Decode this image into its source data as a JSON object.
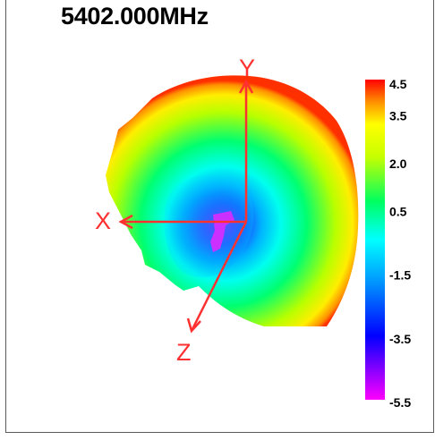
{
  "title": "5402.000MHz",
  "chart_data": {
    "type": "heatmap",
    "title": "5402.000MHz",
    "colorbar": {
      "min": -5.5,
      "max": 4.5,
      "ticks": [
        {
          "label": "4.5",
          "value": 4.5
        },
        {
          "label": "3.5",
          "value": 3.5
        },
        {
          "label": "2.0",
          "value": 2.0
        },
        {
          "label": "0.5",
          "value": 0.5
        },
        {
          "label": "-1.5",
          "value": -1.5
        },
        {
          "label": "-3.5",
          "value": -3.5
        },
        {
          "label": "-5.5",
          "value": -5.5
        }
      ],
      "colormap": [
        "#ff00ff",
        "#0000ff",
        "#00a0ff",
        "#00ffff",
        "#00ff60",
        "#c8ff00",
        "#ffff00",
        "#ff9000",
        "#ff0000"
      ]
    },
    "axes": [
      {
        "label": "X",
        "direction": "left"
      },
      {
        "label": "Y",
        "direction": "up"
      },
      {
        "label": "Z",
        "direction": "down-left"
      }
    ],
    "axis_color": "#ff3030"
  }
}
